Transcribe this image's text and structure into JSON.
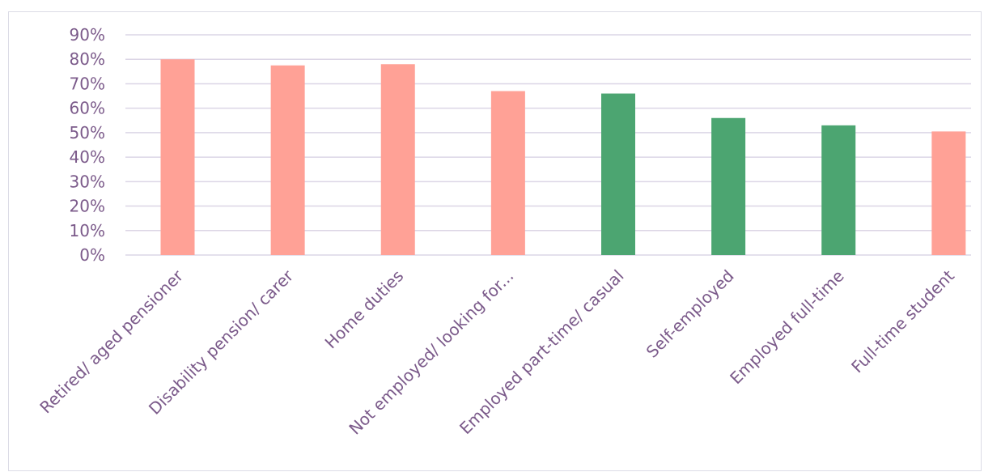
{
  "chart_data": {
    "type": "bar",
    "categories": [
      "Retired/ aged pensioner",
      "Disability pension/ carer",
      "Home duties",
      "Not employed/ looking for...",
      "Employed part-time/ casual",
      "Self-employed",
      "Employed full-time",
      "Full-time student"
    ],
    "values": [
      80,
      77.5,
      78,
      67,
      66,
      56,
      53,
      50.5
    ],
    "bar_colors": [
      "#ffa196",
      "#ffa196",
      "#ffa196",
      "#ffa196",
      "#4ca571",
      "#4ca571",
      "#4ca571",
      "#ffa196"
    ],
    "y_ticks": [
      "0%",
      "10%",
      "20%",
      "30%",
      "40%",
      "50%",
      "60%",
      "70%",
      "80%",
      "90%"
    ],
    "ylim": [
      0,
      90
    ],
    "grid": true,
    "title": "",
    "xlabel": "",
    "ylabel": "",
    "colors": {
      "salmon": "#ffa196",
      "green": "#4ca571",
      "label_text": "#7b5a8a",
      "gridline": "#dcd6e6"
    }
  }
}
